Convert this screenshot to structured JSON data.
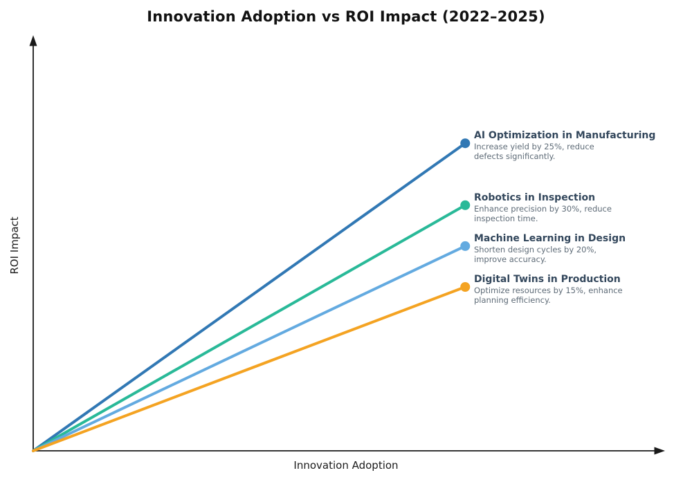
{
  "page": {
    "background_color": "#ffffff"
  },
  "chart_data": {
    "type": "line",
    "title": "Innovation Adoption vs ROI Impact (2022–2025)",
    "xlabel": "Innovation Adoption",
    "ylabel": "ROI Impact",
    "axis_style": "arrowed axes, no ticks, no tick labels, no gridlines",
    "axis_color": "#1a1a1a",
    "label_title_color": "#33475c",
    "label_desc_color": "#5e6b77",
    "x_range": [
      0,
      1
    ],
    "y_range": [
      0,
      1
    ],
    "legend_position": "inline annotations at line endpoints, right side",
    "series": [
      {
        "name": "AI Optimization in Manufacturing",
        "description_lines": [
          "Increase yield by 25%, reduce",
          "defects significantly."
        ],
        "color": "#3178b4",
        "x": [
          0,
          0.686
        ],
        "y": [
          0,
          0.745
        ]
      },
      {
        "name": "Robotics in Inspection",
        "description_lines": [
          "Enhance precision by 30%, reduce",
          "inspection time."
        ],
        "color": "#29b998",
        "x": [
          0,
          0.686
        ],
        "y": [
          0,
          0.595
        ]
      },
      {
        "name": "Machine Learning in Design",
        "description_lines": [
          "Shorten design cycles by 20%,",
          "improve accuracy."
        ],
        "color": "#63aae0",
        "x": [
          0,
          0.686
        ],
        "y": [
          0,
          0.496
        ]
      },
      {
        "name": "Digital Twins in Production",
        "description_lines": [
          "Optimize resources by 15%, enhance",
          "planning efficiency."
        ],
        "color": "#f4a322",
        "x": [
          0,
          0.686
        ],
        "y": [
          0,
          0.397
        ]
      }
    ]
  }
}
